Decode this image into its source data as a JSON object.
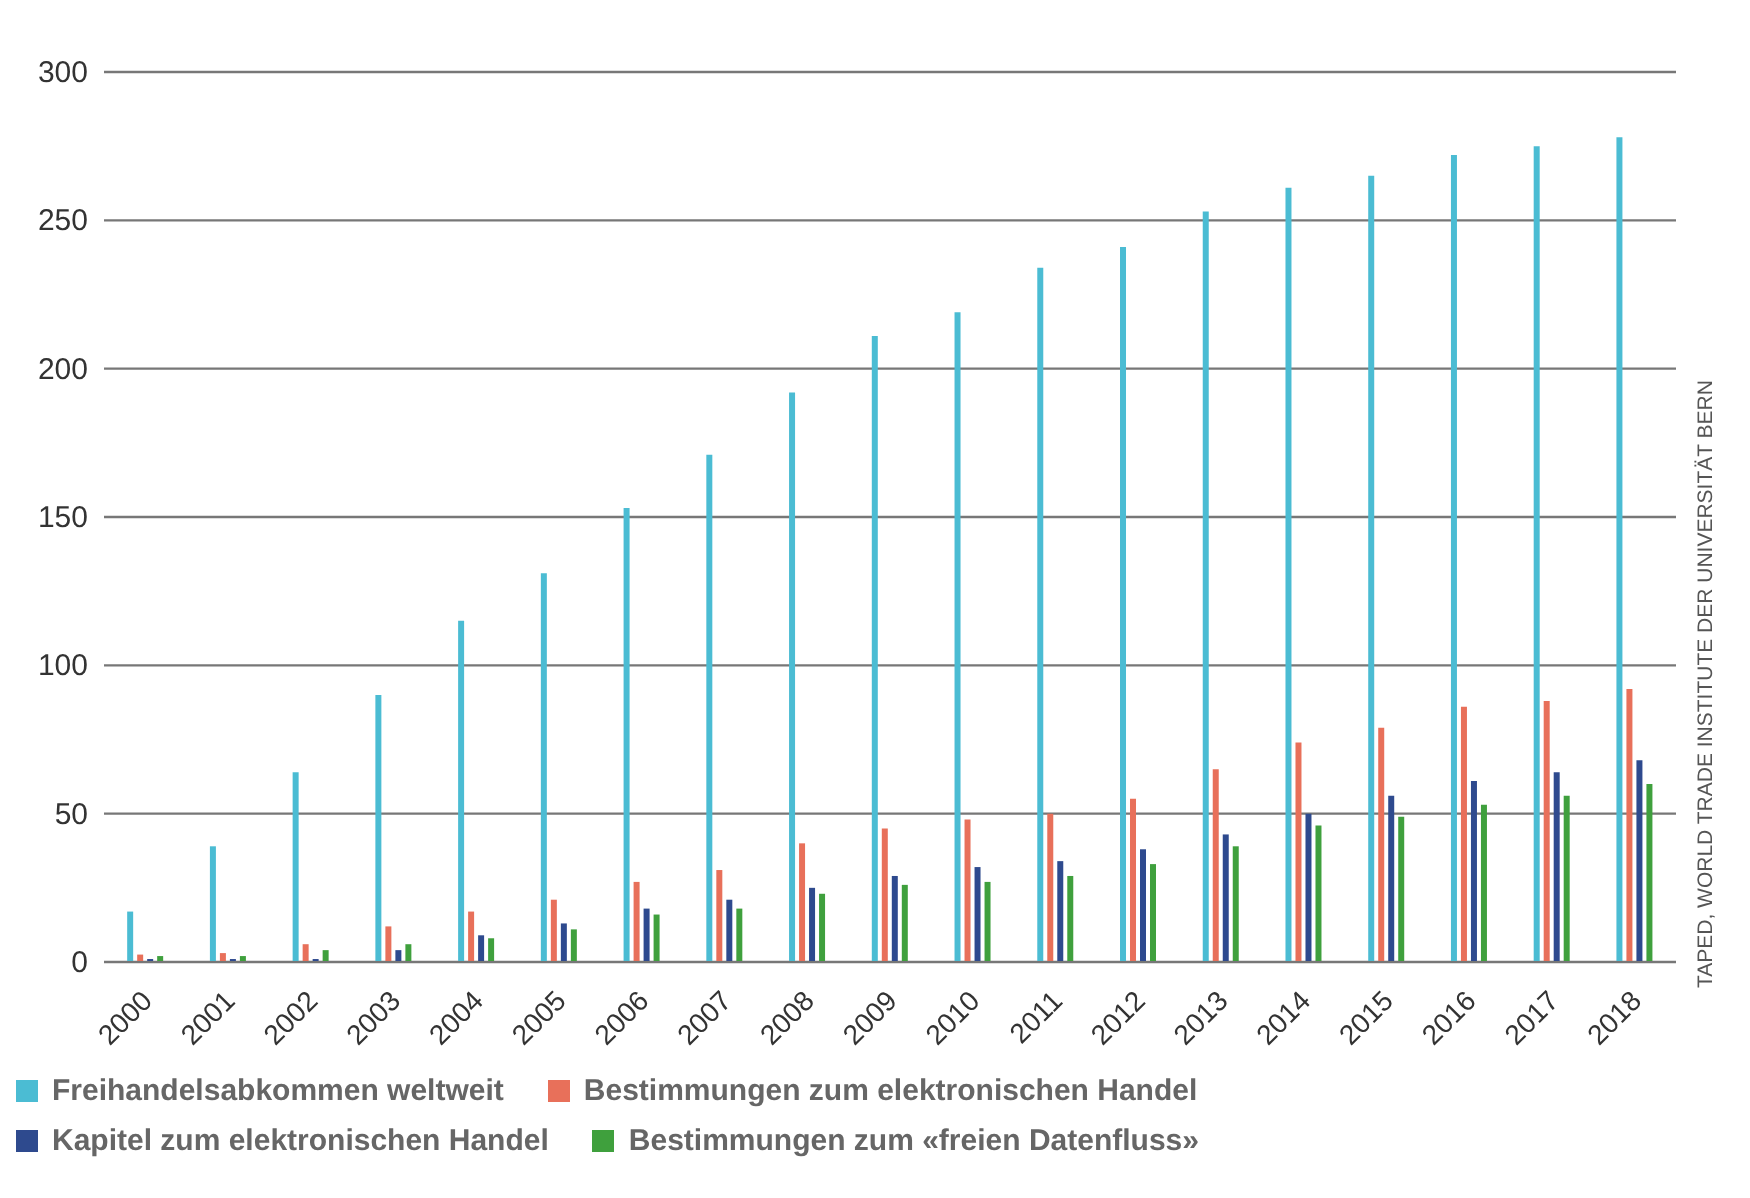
{
  "chart_data": {
    "type": "bar",
    "categories": [
      "2000",
      "2001",
      "2002",
      "2003",
      "2004",
      "2005",
      "2006",
      "2007",
      "2008",
      "2009",
      "2010",
      "2011",
      "2012",
      "2013",
      "2014",
      "2015",
      "2016",
      "2017",
      "2018"
    ],
    "series": [
      {
        "name": "Freihandelsabkommen weltweit",
        "color": "#4bbcd3",
        "values": [
          17,
          39,
          64,
          90,
          115,
          131,
          153,
          171,
          192,
          211,
          219,
          234,
          241,
          253,
          261,
          265,
          272,
          275,
          278
        ]
      },
      {
        "name": "Bestimmungen zum elektronischen Handel",
        "color": "#e8705a",
        "values": [
          2.5,
          3,
          6,
          12,
          17,
          21,
          27,
          31,
          40,
          45,
          48,
          50,
          55,
          65,
          74,
          79,
          86,
          88,
          92
        ]
      },
      {
        "name": "Kapitel zum elektronischen Handel",
        "color": "#2e4a8e",
        "values": [
          1,
          1,
          1,
          4,
          9,
          13,
          18,
          21,
          25,
          29,
          32,
          34,
          38,
          43,
          50,
          56,
          61,
          64,
          68
        ]
      },
      {
        "name": "Bestimmungen zum «freien Datenfluss»",
        "color": "#3fa03d",
        "values": [
          2,
          2,
          4,
          6,
          8,
          11,
          16,
          18,
          23,
          26,
          27,
          29,
          33,
          39,
          46,
          49,
          53,
          56,
          60
        ]
      }
    ],
    "ylim": [
      0,
      300
    ],
    "yticks": [
      0,
      50,
      100,
      150,
      200,
      250,
      300
    ],
    "grid": "y",
    "legend": "bottom",
    "annotations": [
      "TAPED, WORLD TRADE INSTITUTE DER UNIVERSITÄT BERN"
    ]
  }
}
